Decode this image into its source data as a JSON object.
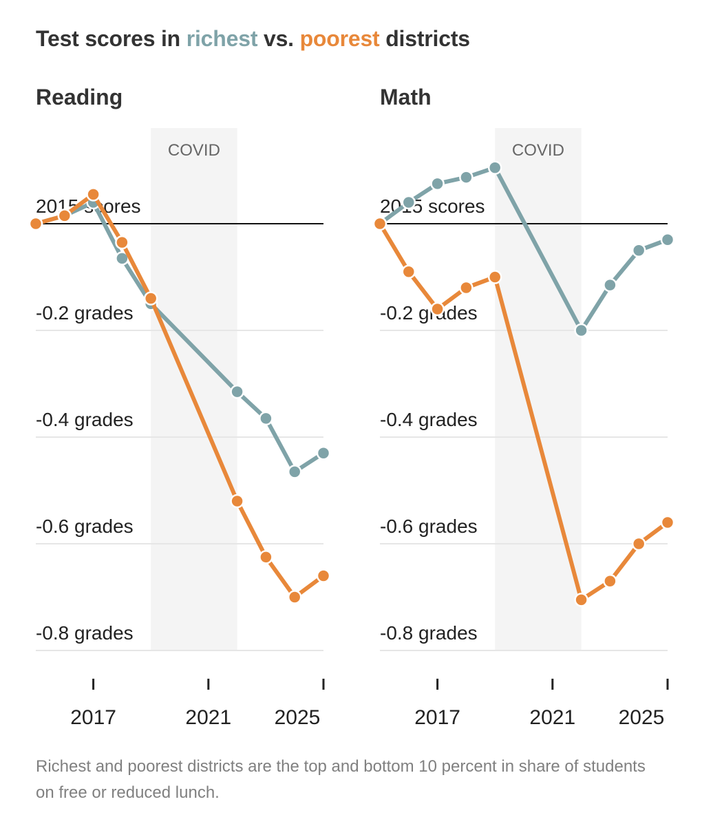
{
  "title": {
    "prefix": "Test scores in ",
    "richest": "richest",
    "middle": " vs. ",
    "poorest": "poorest",
    "suffix": " districts"
  },
  "note": "Richest and poorest districts are the top and bottom 10 percent in share of students on free or reduced lunch.",
  "colors": {
    "richest": "#7fa3a8",
    "poorest": "#e8883a",
    "covid_band": "#f4f4f4",
    "gridline": "#e6e6e6",
    "baseline": "#111111"
  },
  "chart_data": [
    {
      "type": "line",
      "title": "Reading",
      "x": [
        2015,
        2016,
        2017,
        2018,
        2019,
        2022,
        2023,
        2024,
        2025
      ],
      "series": [
        {
          "name": "richest",
          "values": [
            0,
            0.015,
            0.04,
            -0.065,
            -0.15,
            -0.315,
            -0.365,
            -0.465,
            -0.43
          ]
        },
        {
          "name": "poorest",
          "values": [
            0,
            0.015,
            0.055,
            -0.035,
            -0.14,
            -0.52,
            -0.625,
            -0.7,
            -0.66
          ]
        }
      ],
      "baseline_label": "2015 scores",
      "y_ticks": [
        -0.2,
        -0.4,
        -0.6,
        -0.8
      ],
      "y_tick_labels": [
        "-0.2 grades",
        "-0.4 grades",
        "-0.6 grades",
        "-0.8 grades"
      ],
      "x_ticks": [
        2017,
        2021,
        2025
      ],
      "xlim": [
        2015,
        2025
      ],
      "ylim": [
        -0.8,
        0.1
      ],
      "covid_band": {
        "from": 2019,
        "to": 2022,
        "label": "COVID"
      }
    },
    {
      "type": "line",
      "title": "Math",
      "x": [
        2015,
        2016,
        2017,
        2018,
        2019,
        2022,
        2023,
        2024,
        2025
      ],
      "series": [
        {
          "name": "richest",
          "values": [
            0,
            0.04,
            0.075,
            0.087,
            0.105,
            -0.2,
            -0.115,
            -0.05,
            -0.03
          ]
        },
        {
          "name": "poorest",
          "values": [
            0,
            -0.09,
            -0.16,
            -0.12,
            -0.1,
            -0.705,
            -0.67,
            -0.6,
            -0.56
          ]
        }
      ],
      "baseline_label": "2015 scores",
      "y_ticks": [
        -0.2,
        -0.4,
        -0.6,
        -0.8
      ],
      "y_tick_labels": [
        "-0.2 grades",
        "-0.4 grades",
        "-0.6 grades",
        "-0.8 grades"
      ],
      "x_ticks": [
        2017,
        2021,
        2025
      ],
      "xlim": [
        2015,
        2025
      ],
      "ylim": [
        -0.8,
        0.1
      ],
      "covid_band": {
        "from": 2019,
        "to": 2022,
        "label": "COVID"
      }
    }
  ]
}
